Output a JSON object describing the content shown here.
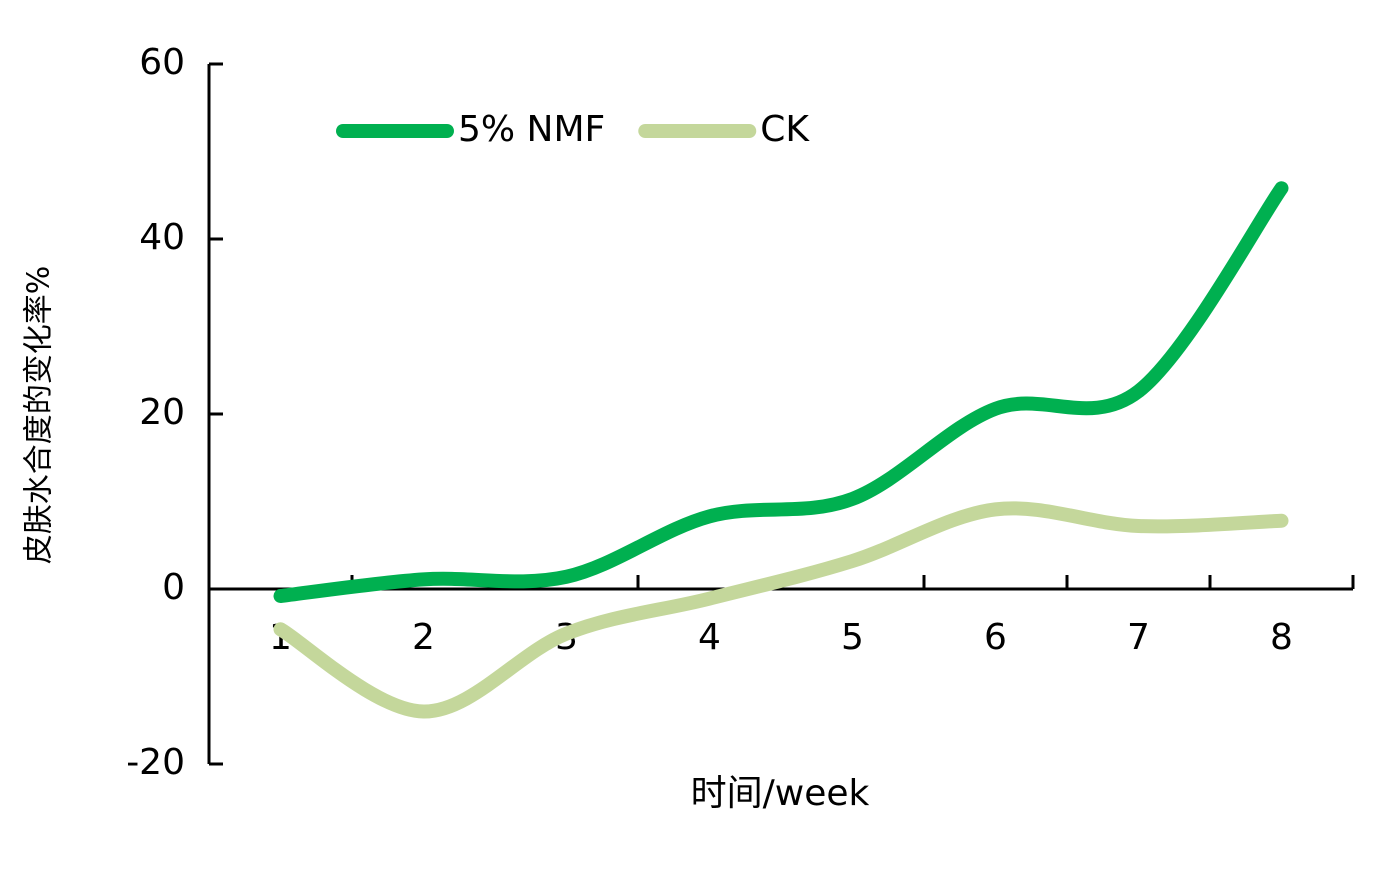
{
  "chart_data": {
    "type": "line",
    "x_label": "时间/week",
    "y_label": "皮肤水合度的变化率%",
    "categories": [
      "1",
      "2",
      "3",
      "4",
      "5",
      "6",
      "7",
      "8"
    ],
    "series": [
      {
        "name": "5% NMF",
        "color": "#00b050",
        "values": [
          -0.8,
          1.1,
          1.4,
          8.3,
          10.3,
          20.6,
          22.6,
          45.8
        ]
      },
      {
        "name": "CK",
        "color": "#c4d79b",
        "values": [
          -4.6,
          -14,
          -5.1,
          -1.1,
          3.2,
          9.1,
          7.2,
          7.8
        ]
      }
    ],
    "ylim": [
      -20,
      60
    ],
    "yticks": [
      -20,
      0,
      20,
      40,
      60
    ],
    "smooth": true,
    "legend": "top"
  }
}
